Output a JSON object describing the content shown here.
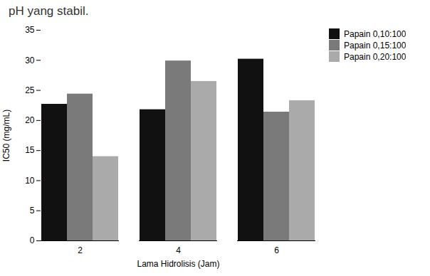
{
  "chart_data": {
    "type": "bar",
    "title": "pH yang stabil.",
    "categories": [
      2,
      4,
      6
    ],
    "series": [
      {
        "name": "Papain 0,10:100",
        "color": "#111111",
        "values": [
          22.7,
          21.8,
          30.2
        ]
      },
      {
        "name": "Papain 0,15:100",
        "color": "#7a7a7a",
        "values": [
          24.4,
          29.9,
          21.4
        ]
      },
      {
        "name": "Papain 0,20:100",
        "color": "#aaaaaa",
        "values": [
          14.0,
          26.5,
          23.3
        ]
      }
    ],
    "xlabel": "Lama Hidrolisis (Jam)",
    "ylabel": "IC50 (mg/mL)",
    "ylim": [
      0,
      35
    ],
    "yticks": [
      0,
      5,
      10,
      15,
      20,
      25,
      30,
      35
    ],
    "grid": false,
    "legend": "right"
  }
}
